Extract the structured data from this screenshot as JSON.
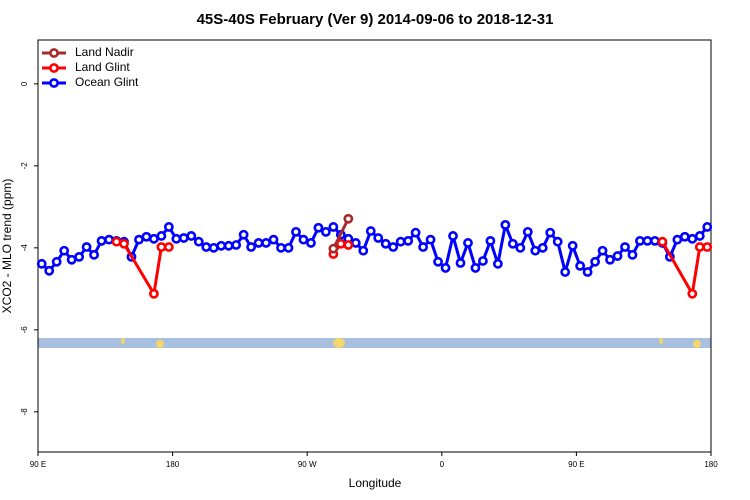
{
  "chart_data": {
    "type": "line",
    "title": "45S-40S February (Ver 9)   2014-09-06 to 2018-12-31",
    "x_label": "Longitude",
    "y_label": "XCO2 - MLO trend (ppm)",
    "xlim": [
      90,
      540
    ],
    "ylim": [
      -8.98,
      1.07
    ],
    "xticks": [
      {
        "value": 90,
        "label": "90 E"
      },
      180,
      {
        "value": 270,
        "label": "90 W"
      },
      {
        "value": 360,
        "label": "0"
      },
      {
        "value": 450,
        "label": "90 E"
      },
      {
        "value": 540,
        "label": "180"
      }
    ],
    "yticks": [
      0,
      -2,
      -4,
      -6,
      -8
    ],
    "legend": "top-left",
    "series": [
      {
        "name": "Land Nadir",
        "color": "#a52a2a",
        "x": [
          287.5,
          297.5
        ],
        "values": [
          -4.02,
          -3.29
        ]
      },
      {
        "name": "Land Glint",
        "color": "#ff0000",
        "x": [
          142.5,
          147.5,
          167.5,
          172.5,
          177.5,
          null,
          287.5,
          292.5,
          297.5,
          null,
          507.5,
          527.5,
          532.5,
          537.5
        ],
        "values": [
          -3.85,
          -3.9,
          -5.12,
          -3.98,
          -3.98,
          null,
          -4.15,
          -3.9,
          -3.93,
          null,
          -3.85,
          -5.12,
          -3.98,
          -3.98
        ]
      },
      {
        "name": "Ocean Glint",
        "color": "#0000ff",
        "x": [
          92.5,
          97.5,
          102.5,
          107.5,
          112.5,
          117.5,
          122.5,
          127.5,
          132.5,
          137.5,
          142.5,
          147.5,
          152.5,
          157.5,
          162.5,
          167.5,
          172.5,
          177.5,
          182.5,
          187.5,
          192.5,
          197.5,
          202.5,
          207.5,
          212.5,
          217.5,
          222.5,
          227.5,
          232.5,
          237.5,
          242.5,
          247.5,
          252.5,
          257.5,
          262.5,
          267.5,
          272.5,
          277.5,
          282.5,
          287.5,
          292.5,
          297.5,
          302.5,
          307.5,
          312.5,
          317.5,
          322.5,
          327.5,
          332.5,
          337.5,
          342.5,
          347.5,
          352.5,
          357.5,
          362.5,
          367.5,
          372.5,
          377.5,
          382.5,
          387.5,
          392.5,
          397.5,
          402.5,
          407.5,
          412.5,
          417.5,
          422.5,
          427.5,
          432.5,
          437.5,
          442.5,
          447.5,
          452.5,
          457.5,
          462.5,
          467.5,
          472.5,
          477.5,
          482.5,
          487.5,
          492.5,
          497.5,
          502.5,
          507.5,
          512.5,
          517.5,
          522.5,
          527.5,
          532.5,
          537.5
        ],
        "values": [
          -4.39,
          -4.56,
          -4.34,
          -4.07,
          -4.29,
          -4.22,
          -3.98,
          -4.17,
          -3.83,
          -3.8,
          -3.83,
          -3.85,
          -4.22,
          -3.8,
          -3.73,
          -3.78,
          -3.71,
          -3.49,
          -3.78,
          -3.76,
          -3.71,
          -3.85,
          -3.98,
          -4.0,
          -3.95,
          -3.95,
          -3.93,
          -3.68,
          -3.98,
          -3.88,
          -3.88,
          -3.8,
          -4.0,
          -4.0,
          -3.61,
          -3.8,
          -3.88,
          -3.51,
          -3.61,
          -3.49,
          -3.68,
          -3.78,
          -3.88,
          -4.07,
          -3.59,
          -3.76,
          -3.9,
          -3.98,
          -3.85,
          -3.83,
          -3.63,
          -3.98,
          -3.8,
          -4.34,
          -4.49,
          -3.71,
          -4.37,
          -3.88,
          -4.49,
          -4.32,
          -3.83,
          -4.39,
          -3.44,
          -3.9,
          -4.0,
          -3.61,
          -4.07,
          -4.0,
          -3.63,
          -3.85,
          -4.59,
          -3.95,
          -4.44,
          -4.59,
          -4.34,
          -4.07,
          -4.29,
          -4.2,
          -3.98,
          -4.17,
          -3.83,
          -3.83,
          -3.83,
          -3.88,
          -4.22,
          -3.8,
          -3.73,
          -3.78,
          -3.71,
          -3.49
        ]
      }
    ]
  }
}
